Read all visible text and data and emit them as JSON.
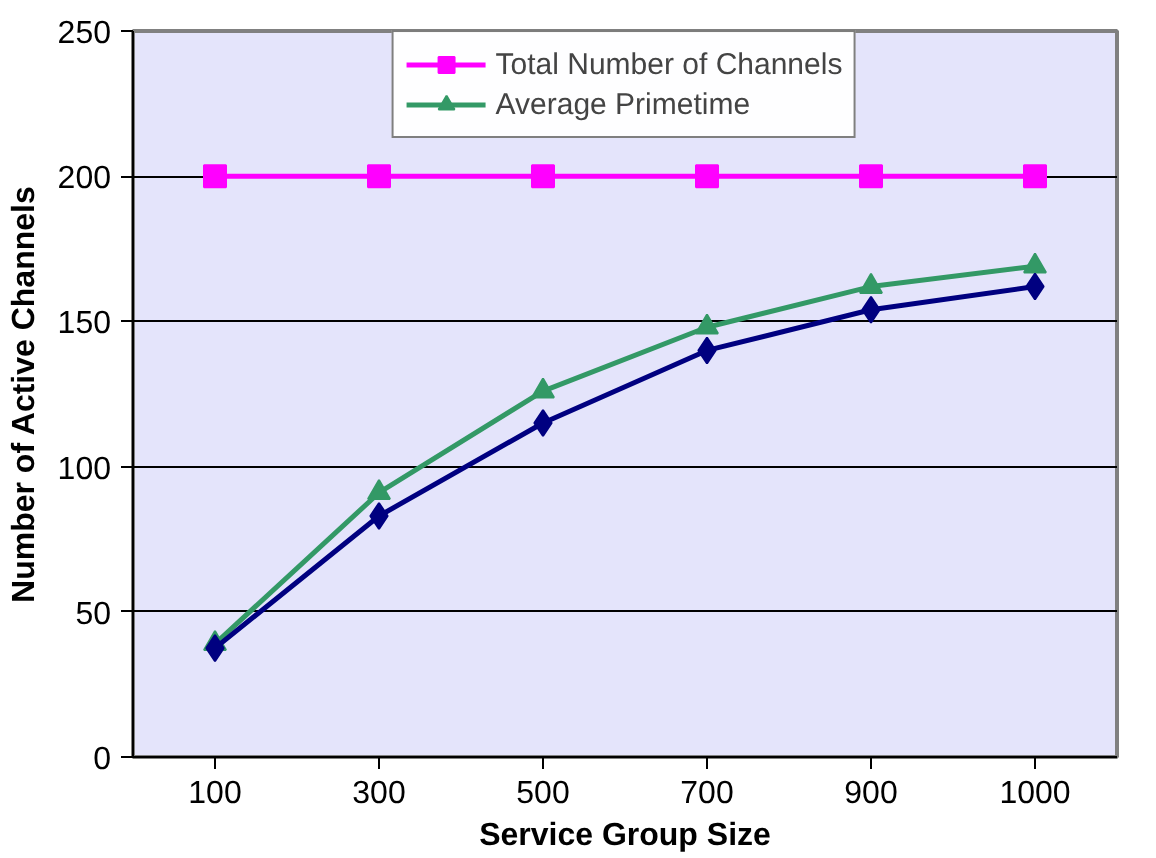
{
  "chart_data": {
    "type": "line",
    "xlabel": "Service Group Size",
    "ylabel": "Number of Active Channels",
    "categories": [
      "100",
      "300",
      "500",
      "700",
      "900",
      "1000"
    ],
    "series": [
      {
        "name": "Total Number of Channels",
        "color": "#ff00ff",
        "marker": "square",
        "values": [
          200,
          200,
          200,
          200,
          200,
          200
        ]
      },
      {
        "name": "Average Primetime",
        "color": "#339966",
        "marker": "triangle",
        "values": [
          39,
          91,
          126,
          148,
          162,
          169
        ]
      },
      {
        "color": "#000080",
        "marker": "diamond",
        "values": [
          37.5,
          83,
          115,
          140,
          154,
          162
        ]
      }
    ],
    "ylim": [
      0,
      250
    ],
    "yticks": [
      0,
      50,
      100,
      150,
      200,
      250
    ],
    "grid": "y",
    "legend": "top",
    "line_style": "solid"
  }
}
